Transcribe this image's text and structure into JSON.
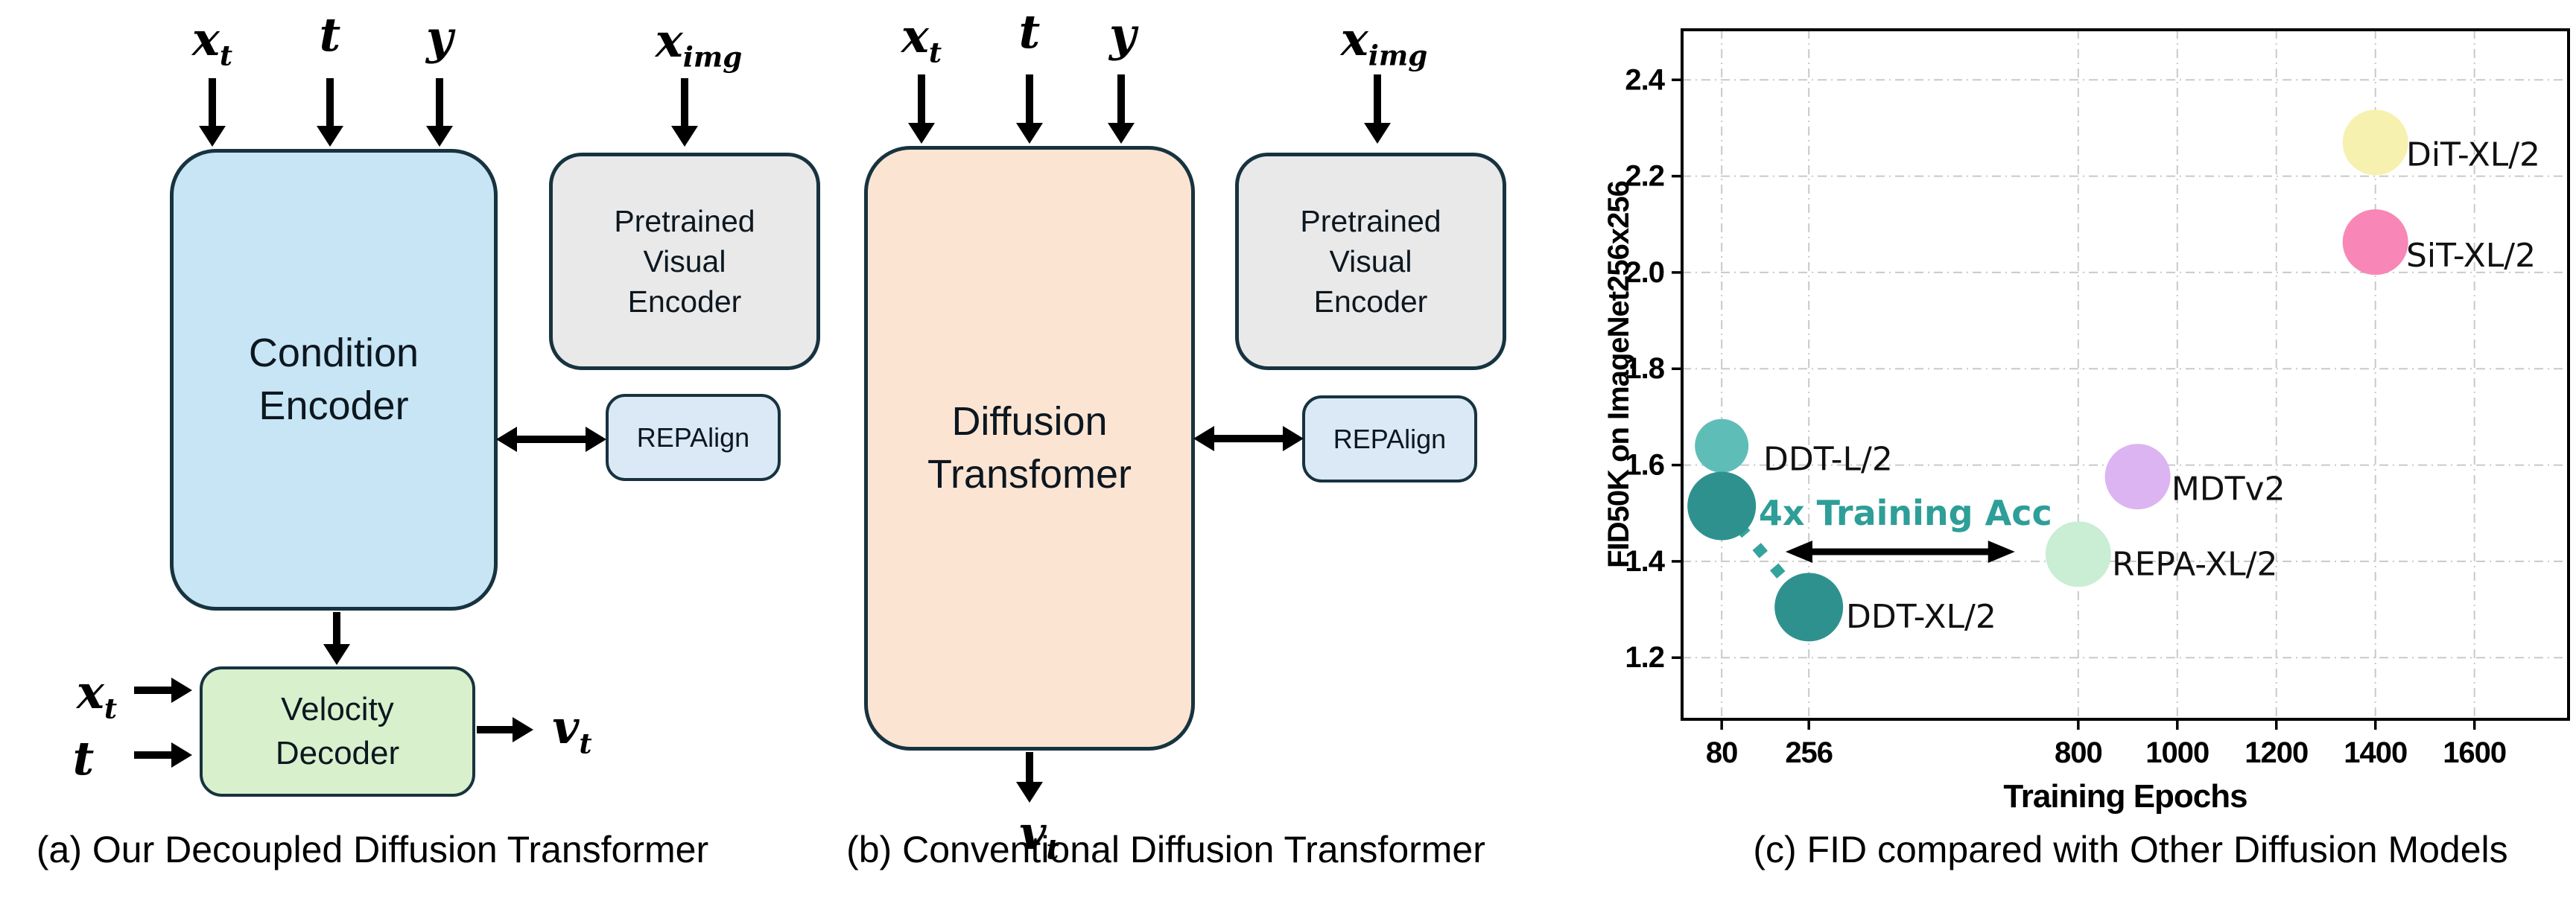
{
  "colors": {
    "box_border": "#17333f",
    "condition_fill": "#c7e5f4",
    "velocity_fill": "#d9f0cc",
    "diffusion_fill": "#fce4d3",
    "pretrained_fill": "#e9e9e9",
    "repalign_fill": "#dbe9f6",
    "accent_teal": "#2e9e98"
  },
  "panel_a": {
    "caption": "(a) Our Decoupled Diffusion Transformer",
    "top_inputs": [
      {
        "base": "x",
        "sub": "t"
      },
      {
        "base": "t",
        "sub": ""
      },
      {
        "base": "y",
        "sub": ""
      }
    ],
    "ximg": {
      "base": "x",
      "sub": "img"
    },
    "condition_encoder": "Condition\nEncoder",
    "pretrained_encoder": "Pretrained\nVisual\nEncoder",
    "repalign": "REPAlign",
    "velocity_decoder": "Velocity\nDecoder",
    "side_inputs": [
      {
        "base": "x",
        "sub": "t"
      },
      {
        "base": "t",
        "sub": ""
      }
    ],
    "output": {
      "base": "v",
      "sub": "t"
    }
  },
  "panel_b": {
    "caption": "(b) Conventional Diffusion Transformer",
    "top_inputs": [
      {
        "base": "x",
        "sub": "t"
      },
      {
        "base": "t",
        "sub": ""
      },
      {
        "base": "y",
        "sub": ""
      }
    ],
    "ximg": {
      "base": "x",
      "sub": "img"
    },
    "diffusion_transformer": "Diffusion\nTransfomer",
    "pretrained_encoder": "Pretrained\nVisual\nEncoder",
    "repalign": "REPAlign",
    "output": {
      "base": "v",
      "sub": "t"
    }
  },
  "panel_c": {
    "caption": "(c) FID compared with Other Diffusion Models"
  },
  "chart_data": {
    "type": "scatter",
    "title": "",
    "xlabel": "Training Epochs",
    "ylabel": "FID50K on ImageNet256x256",
    "xlim": [
      0,
      1790
    ],
    "ylim": [
      1.072,
      2.504
    ],
    "xticks": [
      80,
      256,
      800,
      1000,
      1200,
      1400,
      1600
    ],
    "yticks": [
      1.2,
      1.4,
      1.6,
      1.8,
      2.0,
      2.2,
      2.4
    ],
    "grid": "dash-dot",
    "legend_position": "none",
    "points": [
      {
        "x": 80,
        "y": 1.64,
        "size": 36,
        "color": "#5fbdb8",
        "label": "DDT-L/2",
        "label_x": 164,
        "label_y": 1.612
      },
      {
        "x": 80,
        "y": 1.515,
        "size": 46,
        "color": "#2f918e",
        "label": "",
        "label_x": 0,
        "label_y": 0
      },
      {
        "x": 256,
        "y": 1.305,
        "size": 46,
        "color": "#2f918e",
        "label": "DDT-XL/2",
        "label_x": 331,
        "label_y": 1.285
      },
      {
        "x": 800,
        "y": 1.415,
        "size": 44,
        "color": "#c9eed3",
        "label": "REPA-XL/2",
        "label_x": 868,
        "label_y": 1.394
      },
      {
        "x": 920,
        "y": 1.576,
        "size": 44,
        "color": "#dcb4f1",
        "label": "MDTv2",
        "label_x": 988,
        "label_y": 1.55
      },
      {
        "x": 1400,
        "y": 2.27,
        "size": 44,
        "color": "#f7f1af",
        "label": "DiT-XL/2",
        "label_x": 1462,
        "label_y": 2.244
      },
      {
        "x": 1400,
        "y": 2.063,
        "size": 44,
        "color": "#f887b8",
        "label": "SiT-XL/2",
        "label_x": 1462,
        "label_y": 2.035
      }
    ],
    "annotations": {
      "speedup_text": {
        "text": "4x Training Acc",
        "x": 451,
        "y": 1.476,
        "color": "#2e9e98"
      },
      "speedup_arrow": {
        "x1": 209,
        "x2": 672,
        "y": 1.42
      },
      "trend_dashed_line": {
        "x1": 80,
        "y1": 1.515,
        "x2": 256,
        "y2": 1.305,
        "color": "#35a39d"
      }
    }
  }
}
